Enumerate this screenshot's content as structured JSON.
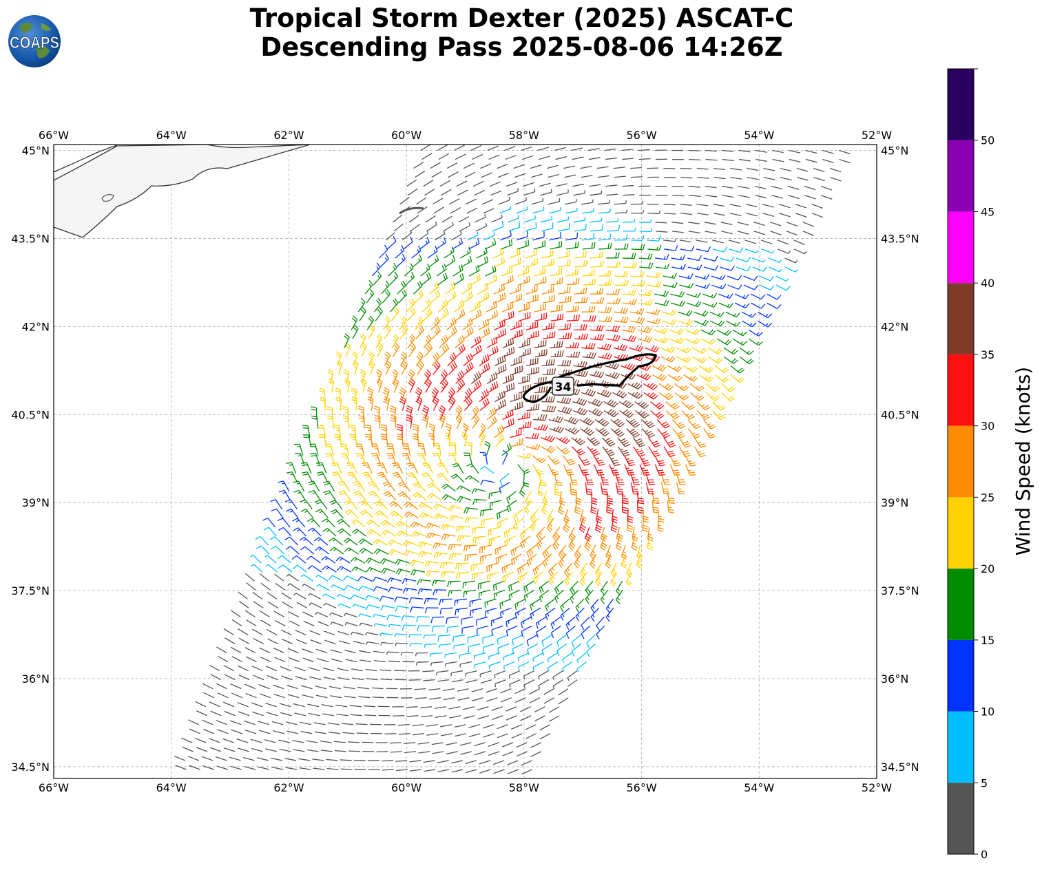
{
  "title": {
    "line1": "Tropical Storm Dexter (2025) ASCAT-C",
    "line2": "Descending Pass 2025-08-06 14:26Z"
  },
  "logo": {
    "text": "COAPS"
  },
  "map": {
    "lon_range": [
      -66,
      -52
    ],
    "lat_range": [
      34.3,
      45.1
    ],
    "lon_ticks": [
      "66°W",
      "64°W",
      "62°W",
      "60°W",
      "58°W",
      "56°W",
      "54°W",
      "52°W"
    ],
    "lat_ticks": [
      "45°N",
      "43.5°N",
      "42°N",
      "40.5°N",
      "39°N",
      "37.5°N",
      "36°N",
      "34.5°N"
    ],
    "grid": "dashed",
    "storm_center": {
      "lon": -58.3,
      "lat": 39.6
    },
    "swath": {
      "bottom_left": {
        "lon": -64.0,
        "lat": 34.3
      },
      "bottom_right": {
        "lon": -57.9,
        "lat": 34.3
      },
      "top_left": {
        "lon": -59.9,
        "lat": 45.0
      },
      "top_right": {
        "lon": -52.5,
        "lat": 45.0
      }
    },
    "contour": {
      "label": "34",
      "color": "#000000"
    }
  },
  "colorbar": {
    "title": "Wind Speed (knots)",
    "ticks": [
      "0",
      "5",
      "10",
      "15",
      "20",
      "25",
      "30",
      "35",
      "40",
      "45",
      "50"
    ],
    "bins": [
      {
        "min": 0,
        "max": 5,
        "color": "#555555"
      },
      {
        "min": 5,
        "max": 10,
        "color": "#00bfff"
      },
      {
        "min": 10,
        "max": 15,
        "color": "#0033ff"
      },
      {
        "min": 15,
        "max": 20,
        "color": "#008c00"
      },
      {
        "min": 20,
        "max": 25,
        "color": "#ffd100"
      },
      {
        "min": 25,
        "max": 30,
        "color": "#ff8c00"
      },
      {
        "min": 30,
        "max": 35,
        "color": "#ff1010"
      },
      {
        "min": 35,
        "max": 40,
        "color": "#7f3b2a"
      },
      {
        "min": 40,
        "max": 45,
        "color": "#ff00ff"
      },
      {
        "min": 45,
        "max": 50,
        "color": "#8a00b0"
      },
      {
        "min": 50,
        "max": 55,
        "color": "#2a0060"
      }
    ]
  }
}
